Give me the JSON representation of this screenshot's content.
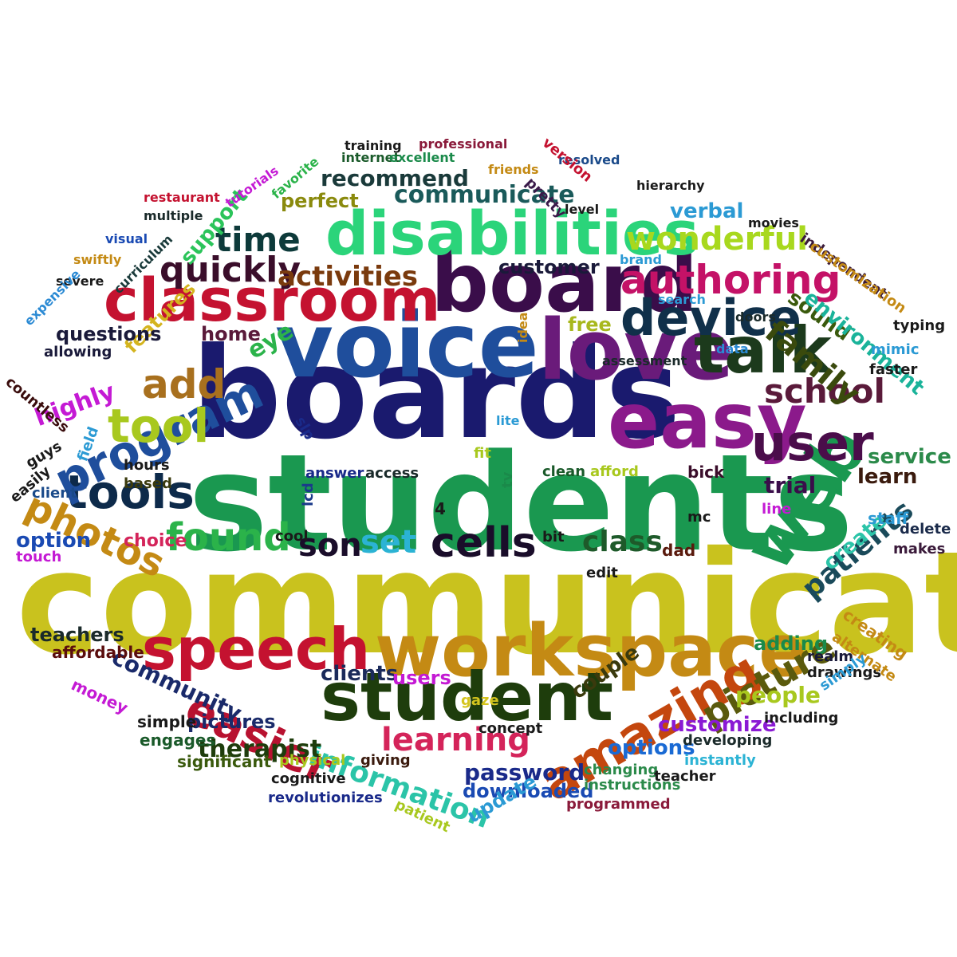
{
  "word_cloud": {
    "words": [
      {
        "text": "communication",
        "color": "#c9c21e"
      },
      {
        "text": "students",
        "color": "#1a9850"
      },
      {
        "text": "boards",
        "color": "#1a1a6e"
      },
      {
        "text": "voice",
        "color": "#1f4e9c"
      },
      {
        "text": "board",
        "color": "#3a0d4a"
      },
      {
        "text": "love",
        "color": "#6a1b7a"
      },
      {
        "text": "easy",
        "color": "#8b1a8b"
      },
      {
        "text": "workspace",
        "color": "#c48a14"
      },
      {
        "text": "student",
        "color": "#1e3d0c"
      },
      {
        "text": "speech",
        "color": "#c41230"
      },
      {
        "text": "classroom",
        "color": "#c41230"
      },
      {
        "text": "disabilities",
        "color": "#2bd47a"
      },
      {
        "text": "talk",
        "color": "#1c3a1c"
      },
      {
        "text": "web",
        "color": "#1a9850"
      },
      {
        "text": "user",
        "color": "#4a0d4a"
      },
      {
        "text": "device",
        "color": "#10304a"
      },
      {
        "text": "authoring",
        "color": "#c41267"
      },
      {
        "text": "tools",
        "color": "#0d2a4a"
      },
      {
        "text": "program",
        "color": "#1f4e9c"
      },
      {
        "text": "tool",
        "color": "#a8c81e"
      },
      {
        "text": "amazing",
        "color": "#c4470e"
      },
      {
        "text": "easier",
        "color": "#b81230"
      },
      {
        "text": "school",
        "color": "#5a1a3a"
      },
      {
        "text": "cells",
        "color": "#1a0d2a"
      },
      {
        "text": "found",
        "color": "#2bb34a"
      },
      {
        "text": "photos",
        "color": "#c48a14"
      },
      {
        "text": "quickly",
        "color": "#3a0d2a"
      },
      {
        "text": "time",
        "color": "#0d3a3a"
      },
      {
        "text": "activities",
        "color": "#7a3a0d"
      },
      {
        "text": "wonderful",
        "color": "#a8d81e"
      },
      {
        "text": "family",
        "color": "#3a4a0d"
      },
      {
        "text": "picture",
        "color": "#5a5a0d"
      },
      {
        "text": "patients",
        "color": "#1a4a5a"
      },
      {
        "text": "learning",
        "color": "#d4245a"
      },
      {
        "text": "information",
        "color": "#2bc4a8"
      },
      {
        "text": "therapist",
        "color": "#1e3d0c"
      },
      {
        "text": "password",
        "color": "#1a2a8a"
      },
      {
        "text": "add",
        "color": "#a8701e"
      },
      {
        "text": "son",
        "color": "#1a0d2a"
      },
      {
        "text": "set",
        "color": "#2bb3d4"
      },
      {
        "text": "class",
        "color": "#1e5a2a"
      },
      {
        "text": "community",
        "color": "#1a2a6a"
      },
      {
        "text": "support",
        "color": "#2bc45a"
      },
      {
        "text": "recommend",
        "color": "#1a3a3a"
      },
      {
        "text": "communicate",
        "color": "#1a5a5a"
      },
      {
        "text": "perfect",
        "color": "#8a8a0d"
      },
      {
        "text": "verbal",
        "color": "#2b9ad4"
      },
      {
        "text": "customer",
        "color": "#1a1a3a"
      },
      {
        "text": "features",
        "color": "#d4b41e"
      },
      {
        "text": "questions",
        "color": "#1a1a3a"
      },
      {
        "text": "highly",
        "color": "#c41ad4"
      },
      {
        "text": "home",
        "color": "#5a1a3a"
      },
      {
        "text": "free",
        "color": "#a8b81e"
      },
      {
        "text": "eye",
        "color": "#2bb34a"
      },
      {
        "text": "sound",
        "color": "#3a5a0d"
      },
      {
        "text": "environment",
        "color": "#1ab39a"
      },
      {
        "text": "service",
        "color": "#2b8a4a"
      },
      {
        "text": "learn",
        "color": "#3a1a0d"
      },
      {
        "text": "trial",
        "color": "#3a0d4a"
      },
      {
        "text": "create",
        "color": "#2bc4a8"
      },
      {
        "text": "option",
        "color": "#1a4ab3"
      },
      {
        "text": "choice",
        "color": "#d4245a"
      },
      {
        "text": "clients",
        "color": "#1a2a5a"
      },
      {
        "text": "users",
        "color": "#c41ad4"
      },
      {
        "text": "customize",
        "color": "#8a1ad4"
      },
      {
        "text": "options",
        "color": "#1a6ad4"
      },
      {
        "text": "people",
        "color": "#a8c81e"
      },
      {
        "text": "couple",
        "color": "#3a3a0d"
      },
      {
        "text": "adding",
        "color": "#1a8a4a"
      },
      {
        "text": "teachers",
        "color": "#1a2a2a"
      },
      {
        "text": "affordable",
        "color": "#5a0d0d"
      },
      {
        "text": "pictures",
        "color": "#1a2a6a"
      },
      {
        "text": "simple",
        "color": "#1a1a1a"
      },
      {
        "text": "engages",
        "color": "#1a5a2a"
      },
      {
        "text": "money",
        "color": "#c41ad4"
      },
      {
        "text": "significant",
        "color": "#3a5a0d"
      },
      {
        "text": "physical",
        "color": "#a8c81e"
      },
      {
        "text": "giving",
        "color": "#3a1a0d"
      },
      {
        "text": "revolutionizes",
        "color": "#1a2a8a"
      },
      {
        "text": "downloaded",
        "color": "#1a4ab3"
      },
      {
        "text": "update",
        "color": "#2b9ad4"
      },
      {
        "text": "programmed",
        "color": "#8a1a3a"
      },
      {
        "text": "instructions",
        "color": "#2b8a4a"
      },
      {
        "text": "changing",
        "color": "#2b8a4a"
      },
      {
        "text": "instantly",
        "color": "#2bb3d4"
      },
      {
        "text": "developing",
        "color": "#1a2a2a"
      },
      {
        "text": "including",
        "color": "#1a1a1a"
      },
      {
        "text": "drawings",
        "color": "#1a1a1a"
      },
      {
        "text": "creating",
        "color": "#c48a14"
      },
      {
        "text": "alternate",
        "color": "#c48a14"
      },
      {
        "text": "realm",
        "color": "#1a1a3a"
      },
      {
        "text": "simply",
        "color": "#2b9ad4"
      },
      {
        "text": "concept",
        "color": "#1a1a1a"
      },
      {
        "text": "gaze",
        "color": "#d4c41e"
      },
      {
        "text": "staff",
        "color": "#2b9ad4"
      },
      {
        "text": "makes",
        "color": "#3a1a3a"
      },
      {
        "text": "delete",
        "color": "#1a2a4a"
      },
      {
        "text": "line",
        "color": "#c41ad4"
      },
      {
        "text": "dad",
        "color": "#5a1a0d"
      },
      {
        "text": "bick",
        "color": "#3a0d2a"
      },
      {
        "text": "mc",
        "color": "#1a1a1a"
      },
      {
        "text": "afford",
        "color": "#a8c81e"
      },
      {
        "text": "clean",
        "color": "#1a5a2a"
      },
      {
        "text": "access",
        "color": "#1a2a2a"
      },
      {
        "text": "answer",
        "color": "#1a2a8a"
      },
      {
        "text": "lcd",
        "color": "#1a3a8a"
      },
      {
        "text": "tv",
        "color": "#1a8a4a"
      },
      {
        "text": "fit",
        "color": "#a8c81e"
      },
      {
        "text": "bit",
        "color": "#1a1a1a"
      },
      {
        "text": "edit",
        "color": "#1a1a1a"
      },
      {
        "text": "hours",
        "color": "#1a1a1a"
      },
      {
        "text": "based",
        "color": "#3a3a0d"
      },
      {
        "text": "client",
        "color": "#1a4a8a"
      },
      {
        "text": "field",
        "color": "#2b9ad4"
      },
      {
        "text": "guys",
        "color": "#1a1a1a"
      },
      {
        "text": "easily",
        "color": "#1a1a1a"
      },
      {
        "text": "touch",
        "color": "#c41ad4"
      },
      {
        "text": "countless",
        "color": "#3a0d0d"
      },
      {
        "text": "allowing",
        "color": "#1a1a3a"
      },
      {
        "text": "severe",
        "color": "#1a1a1a"
      },
      {
        "text": "expensive",
        "color": "#2b8ad4"
      },
      {
        "text": "swiftly",
        "color": "#c48a14"
      },
      {
        "text": "visual",
        "color": "#1a4ab3"
      },
      {
        "text": "curriculum",
        "color": "#1a3a3a"
      },
      {
        "text": "multiple",
        "color": "#1a2a2a"
      },
      {
        "text": "restaurant",
        "color": "#c41230"
      },
      {
        "text": "tutorials",
        "color": "#c41ad4"
      },
      {
        "text": "favorite",
        "color": "#2bb34a"
      },
      {
        "text": "internet",
        "color": "#1a5a2a"
      },
      {
        "text": "training",
        "color": "#1a1a1a"
      },
      {
        "text": "excellent",
        "color": "#1a8a4a"
      },
      {
        "text": "professional",
        "color": "#8a1a3a"
      },
      {
        "text": "friends",
        "color": "#c48a14"
      },
      {
        "text": "resolved",
        "color": "#1a4a8a"
      },
      {
        "text": "version",
        "color": "#c41230"
      },
      {
        "text": "pretty",
        "color": "#3a1a4a"
      },
      {
        "text": "hierarchy",
        "color": "#1a1a1a"
      },
      {
        "text": "level",
        "color": "#1a1a1a"
      },
      {
        "text": "movies",
        "color": "#1a1a1a"
      },
      {
        "text": "brand",
        "color": "#2b9ad4"
      },
      {
        "text": "search",
        "color": "#2b9ad4"
      },
      {
        "text": "doors",
        "color": "#1a2a2a"
      },
      {
        "text": "independent",
        "color": "#3a1a3a"
      },
      {
        "text": "customization",
        "color": "#c48a14"
      },
      {
        "text": "typing",
        "color": "#1a1a1a"
      },
      {
        "text": "mimic",
        "color": "#2b9ad4"
      },
      {
        "text": "faster",
        "color": "#1a1a1a"
      },
      {
        "text": "data",
        "color": "#2b8ad4"
      },
      {
        "text": "idea",
        "color": "#c48a14"
      },
      {
        "text": "assessment",
        "color": "#1a2a2a"
      },
      {
        "text": "lite",
        "color": "#2b9ad4"
      },
      {
        "text": "cool",
        "color": "#1a1a1a"
      },
      {
        "text": "slp",
        "color": "#1a2a8a"
      },
      {
        "text": "4",
        "color": "#1a1a1a"
      },
      {
        "text": "teacher",
        "color": "#1a1a1a"
      },
      {
        "text": "cognitive",
        "color": "#1a1a1a"
      },
      {
        "text": "patient",
        "color": "#a8c81e"
      }
    ]
  }
}
